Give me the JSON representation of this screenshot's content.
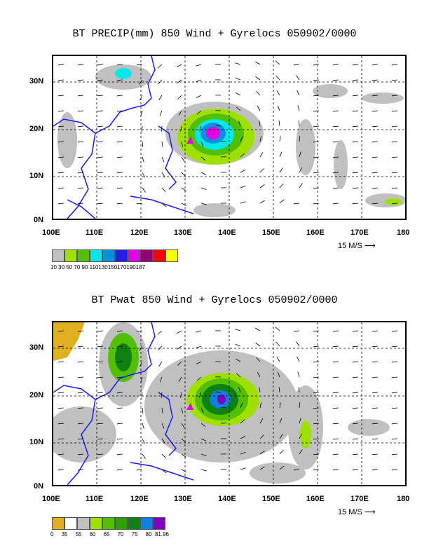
{
  "panel1": {
    "title": "BT PRECIP(mm) 850 Wind + Gyrelocs 050902/0000",
    "lat_labels": [
      "30N",
      "20N",
      "10N",
      "0N"
    ],
    "lon_labels": [
      "100E",
      "110E",
      "120E",
      "130E",
      "140E",
      "150E",
      "160E",
      "170E",
      "180"
    ],
    "ref_vector": "15 M/S",
    "colorbar": {
      "colors": [
        "#c0c0c0",
        "#a0e000",
        "#50c000",
        "#00e8e8",
        "#0090e0",
        "#2020e0",
        "#e000e0",
        "#900070",
        "#ff0000",
        "#ffff00"
      ],
      "labels": "10 30 50 70 90 110130150170190187"
    }
  },
  "panel2": {
    "title": "BT Pwat 850 Wind + Gyrelocs 050902/0000",
    "lat_labels": [
      "30N",
      "20N",
      "10N",
      "0N"
    ],
    "lon_labels": [
      "100E",
      "110E",
      "120E",
      "130E",
      "140E",
      "150E",
      "160E",
      "170E",
      "180"
    ],
    "ref_vector": "15 M/S",
    "colorbar": {
      "colors": [
        "#e0b020",
        "#ffffff",
        "#c0c0c0",
        "#a0e000",
        "#50c000",
        "#30a000",
        "#108010",
        "#1080e0",
        "#8000c0"
      ],
      "labels": "0     35     55     60     65     70     75     80  81.96"
    }
  },
  "colors": {
    "coast": "#1a1aff",
    "grid": "#000000",
    "marker": "#e000e0"
  }
}
